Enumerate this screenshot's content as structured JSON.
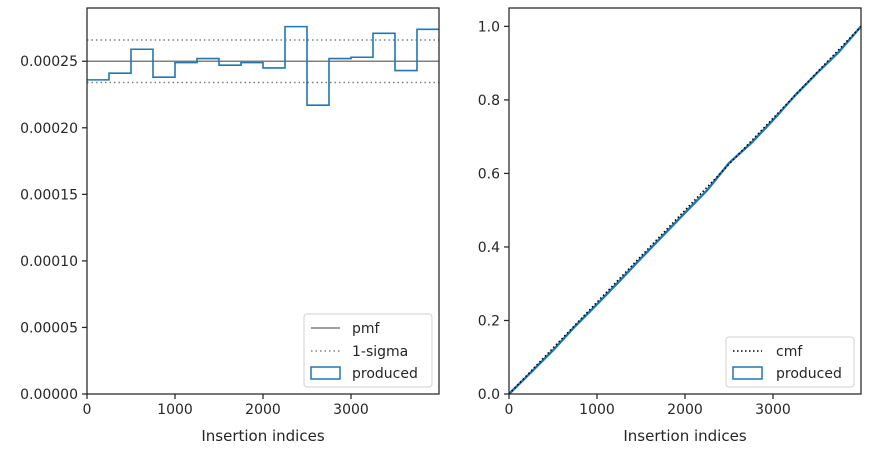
{
  "chart_data": [
    {
      "type": "histogram",
      "xlabel": "Insertion indices",
      "ylabel": "",
      "xlim": [
        0,
        4000
      ],
      "ylim": [
        0,
        0.00029
      ],
      "xticks": [
        0,
        1000,
        2000,
        3000
      ],
      "xtick_labels": [
        "0",
        "1000",
        "2000",
        "3000"
      ],
      "yticks": [
        0,
        5e-05,
        0.0001,
        0.00015,
        0.0002,
        0.00025
      ],
      "ytick_labels": [
        "0.00000",
        "0.00005",
        "0.00010",
        "0.00015",
        "0.00020",
        "0.00025"
      ],
      "pmf": 0.00025,
      "sigma_lower": 0.000234,
      "sigma_upper": 0.000266,
      "bin_edges": [
        0,
        250,
        500,
        750,
        1000,
        1250,
        1500,
        1750,
        2000,
        2250,
        2500,
        2750,
        3000,
        3250,
        3500,
        3750,
        4000
      ],
      "produced": [
        0.000236,
        0.000241,
        0.000259,
        0.000238,
        0.000249,
        0.000252,
        0.000247,
        0.000249,
        0.000245,
        0.000276,
        0.000217,
        0.000252,
        0.000253,
        0.000271,
        0.000243,
        0.000274
      ],
      "grid": false,
      "legend_position": "lower-right",
      "legend": [
        "pmf",
        "1-sigma",
        "produced"
      ],
      "colors": {
        "pmf": "#808080",
        "sigma": "#808080",
        "produced": "#1f77b4"
      }
    },
    {
      "type": "line",
      "xlabel": "Insertion indices",
      "ylabel": "",
      "xlim": [
        0,
        4000
      ],
      "ylim": [
        0,
        1.05
      ],
      "xticks": [
        0,
        1000,
        2000,
        3000
      ],
      "xtick_labels": [
        "0",
        "1000",
        "2000",
        "3000"
      ],
      "yticks": [
        0,
        0.2,
        0.4,
        0.6,
        0.8,
        1.0
      ],
      "ytick_labels": [
        "0.0",
        "0.2",
        "0.4",
        "0.6",
        "0.8",
        "1.0"
      ],
      "cmf": {
        "x": [
          0,
          4000
        ],
        "y": [
          0,
          1.0
        ]
      },
      "produced": {
        "x": [
          0,
          250,
          500,
          750,
          1000,
          1250,
          1500,
          1750,
          2000,
          2250,
          2500,
          2750,
          3000,
          3250,
          3500,
          3750,
          4000
        ],
        "y": [
          0,
          0.059,
          0.119,
          0.184,
          0.244,
          0.306,
          0.369,
          0.431,
          0.493,
          0.554,
          0.628,
          0.682,
          0.745,
          0.812,
          0.873,
          0.931,
          1.0
        ]
      },
      "grid": false,
      "legend_position": "lower-right",
      "legend": [
        "cmf",
        "produced"
      ],
      "colors": {
        "cmf": "#000000",
        "produced": "#1f77b4"
      }
    }
  ]
}
